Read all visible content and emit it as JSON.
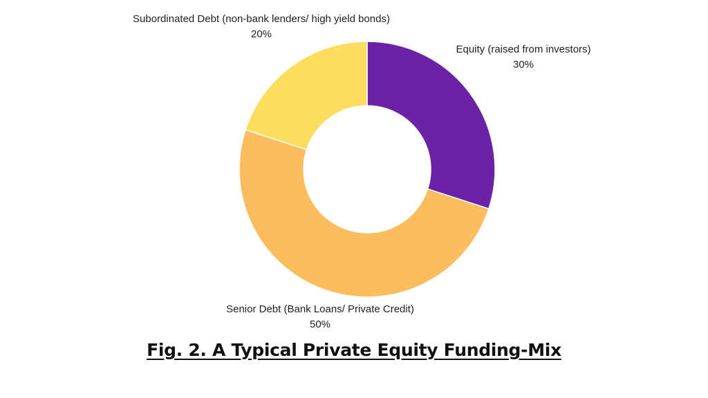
{
  "chart_data": {
    "type": "pie",
    "variant": "donut",
    "title": "",
    "caption": "Fig. 2. A Typical Private Equity Funding-Mix",
    "unit": "%",
    "legend": "none",
    "slices": [
      {
        "label": "Equity (raised from investors)",
        "value": 30,
        "display": "30%",
        "color": "#6b21a8"
      },
      {
        "label": "Senior Debt (Bank Loans/ Private Credit)",
        "value": 50,
        "display": "50%",
        "color": "#fdbc5e"
      },
      {
        "label": "Subordinated Debt (non-bank lenders/ high yield bonds)",
        "value": 20,
        "display": "20%",
        "color": "#fedd5d"
      }
    ]
  }
}
